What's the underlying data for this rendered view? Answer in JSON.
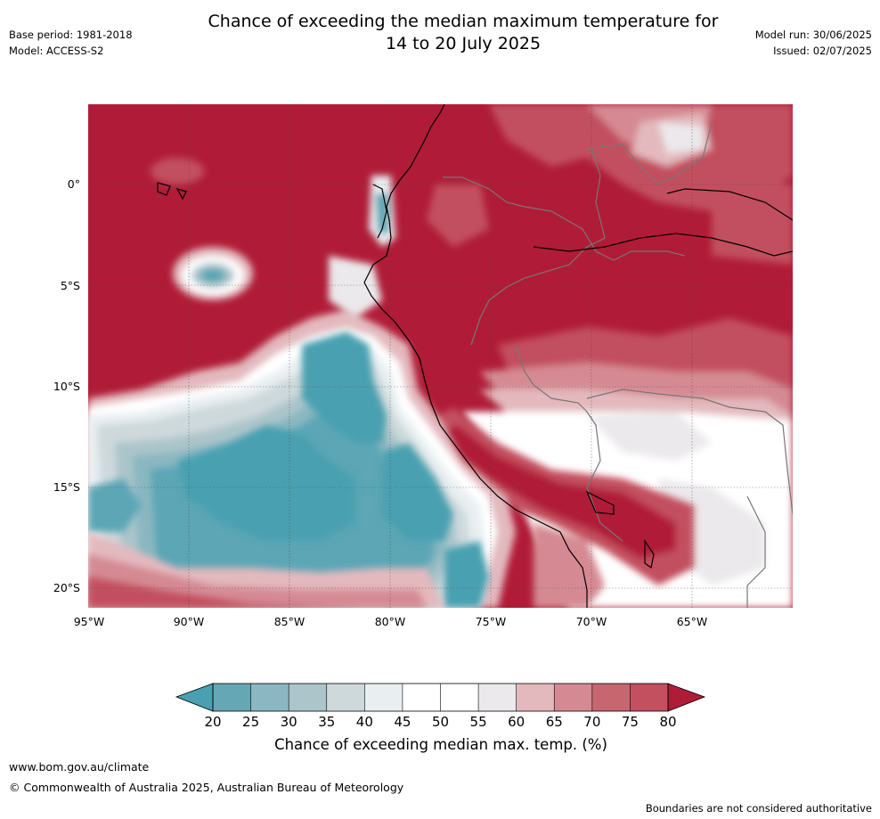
{
  "header": {
    "title_line1": "Chance of exceeding the median maximum temperature for",
    "title_line2": "14 to 20 July 2025",
    "base_period": "Base period: 1981-2018",
    "model": "Model: ACCESS-S2",
    "model_run": "Model run: 30/06/2025",
    "issued": "Issued: 02/07/2025"
  },
  "map": {
    "region": "Western South America and eastern tropical Pacific",
    "longitude_labels": [
      "95°W",
      "90°W",
      "85°W",
      "80°W",
      "75°W",
      "70°W",
      "65°W"
    ],
    "latitude_labels": [
      "0°",
      "5°S",
      "10°S",
      "15°S",
      "20°S"
    ],
    "colors": {
      "very_high": "#B01C37",
      "high": "#C2505E",
      "mid_high": "#D58A93",
      "low_high": "#E3B9BE",
      "neutral_warm": "#EBE9EB",
      "neutral": "#FFFFFF",
      "neutral_cool": "#E9EFF1",
      "low_cool": "#CED9DC",
      "mid_cool": "#A9C5CB",
      "cool": "#88B7C0",
      "very_cool": "#5CA6B5",
      "extreme_cool": "#4AA0B1"
    }
  },
  "colorbar": {
    "ticks": [
      "20",
      "25",
      "30",
      "35",
      "40",
      "45",
      "50",
      "55",
      "60",
      "65",
      "70",
      "75",
      "80"
    ],
    "segment_colors": [
      "#65A7B5",
      "#8AB7C1",
      "#ABC5CB",
      "#CED9DC",
      "#E9EFF1",
      "#FFFFFF",
      "#FFFFFF",
      "#EBE9EB",
      "#E3B9BE",
      "#D58A93",
      "#C86670",
      "#C2505E"
    ],
    "low_extension_color": "#4AA0B1",
    "high_extension_color": "#B01C37",
    "label": "Chance of exceeding median max. temp. (%)"
  },
  "footer": {
    "website": "www.bom.gov.au/climate",
    "copyright": "© Commonwealth of Australia 2025, Australian Bureau of Meteorology",
    "disclaimer": "Boundaries are not considered authoritative"
  }
}
